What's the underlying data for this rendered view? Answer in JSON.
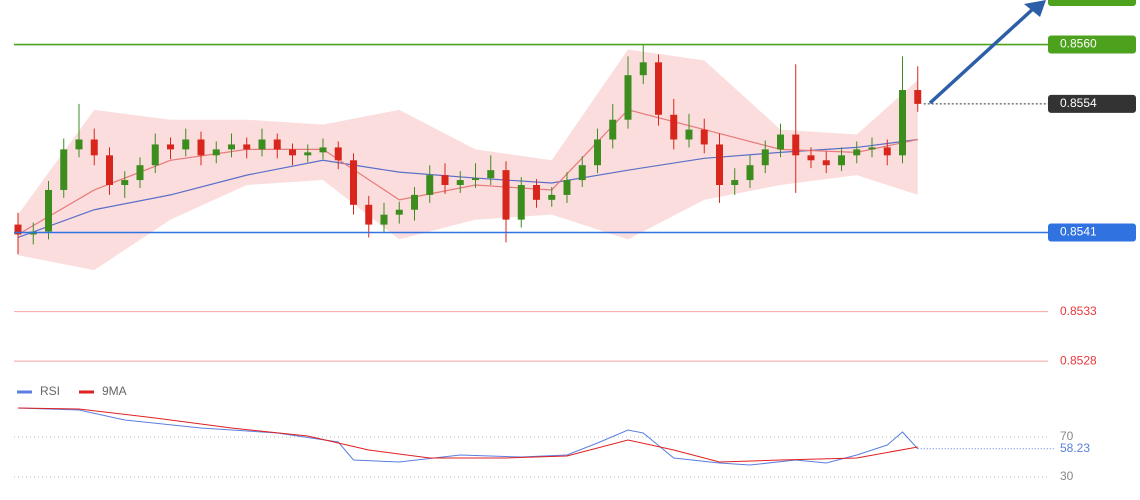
{
  "chart_data": {
    "type": "candlestick",
    "ylim": [
      0.8527,
      0.85645
    ],
    "up_color": "#3c8c1e",
    "down_color": "#d9261c",
    "candles": {
      "open": [
        0.85418,
        0.85408,
        0.85411,
        0.85453,
        0.85494,
        0.85504,
        0.85488,
        0.85458,
        0.85463,
        0.85478,
        0.85499,
        0.85494,
        0.85504,
        0.85488,
        0.85494,
        0.85499,
        0.85494,
        0.85504,
        0.85494,
        0.85488,
        0.85491,
        0.85496,
        0.85483,
        0.85438,
        0.85418,
        0.85428,
        0.85433,
        0.85448,
        0.85468,
        0.85458,
        0.85463,
        0.85465,
        0.85473,
        0.85423,
        0.85458,
        0.85443,
        0.85448,
        0.85463,
        0.85478,
        0.85504,
        0.85524,
        0.85569,
        0.85582,
        0.85529,
        0.85504,
        0.85514,
        0.85499,
        0.85458,
        0.85463,
        0.85478,
        0.85494,
        0.85509,
        0.85488,
        0.85483,
        0.85478,
        0.85488,
        0.85494,
        0.85496,
        0.85488,
        0.85554
      ],
      "high": [
        0.8543,
        0.8542,
        0.85462,
        0.85505,
        0.8554,
        0.85515,
        0.85496,
        0.85472,
        0.85486,
        0.8551,
        0.85506,
        0.85515,
        0.85512,
        0.85502,
        0.8551,
        0.85506,
        0.85515,
        0.8551,
        0.855,
        0.85499,
        0.85505,
        0.85502,
        0.8549,
        0.85447,
        0.8544,
        0.85441,
        0.85456,
        0.85478,
        0.8548,
        0.85472,
        0.8548,
        0.85488,
        0.85482,
        0.85466,
        0.85464,
        0.85456,
        0.85471,
        0.85487,
        0.85515,
        0.8554,
        0.85588,
        0.856,
        0.8559,
        0.85545,
        0.8553,
        0.85525,
        0.8551,
        0.85475,
        0.85488,
        0.85503,
        0.8552,
        0.8558,
        0.85496,
        0.85492,
        0.85496,
        0.85502,
        0.85506,
        0.85504,
        0.85588,
        0.85578
      ],
      "low": [
        0.85388,
        0.85398,
        0.85403,
        0.85445,
        0.85486,
        0.85478,
        0.85448,
        0.85445,
        0.85455,
        0.8547,
        0.85484,
        0.85487,
        0.85478,
        0.8548,
        0.85486,
        0.85485,
        0.85487,
        0.85485,
        0.85478,
        0.85481,
        0.85484,
        0.85474,
        0.85428,
        0.85405,
        0.8541,
        0.85419,
        0.85422,
        0.8544,
        0.85449,
        0.8545,
        0.85455,
        0.85458,
        0.854,
        0.85415,
        0.85435,
        0.85436,
        0.8544,
        0.85456,
        0.8547,
        0.85495,
        0.85515,
        0.8556,
        0.85518,
        0.85494,
        0.85496,
        0.8549,
        0.8544,
        0.85448,
        0.85455,
        0.8547,
        0.85486,
        0.8545,
        0.85475,
        0.8547,
        0.85472,
        0.8548,
        0.85486,
        0.85478,
        0.8548,
        0.85532
      ],
      "close": [
        0.85408,
        0.85411,
        0.85453,
        0.85494,
        0.85504,
        0.85488,
        0.85458,
        0.85463,
        0.85478,
        0.85499,
        0.85494,
        0.85504,
        0.85488,
        0.85494,
        0.85499,
        0.85494,
        0.85504,
        0.85494,
        0.85488,
        0.85491,
        0.85496,
        0.85483,
        0.85438,
        0.85418,
        0.85428,
        0.85433,
        0.85448,
        0.85468,
        0.85458,
        0.85463,
        0.85465,
        0.85473,
        0.85423,
        0.85458,
        0.85443,
        0.85448,
        0.85463,
        0.85478,
        0.85504,
        0.85524,
        0.85569,
        0.85582,
        0.85529,
        0.85504,
        0.85514,
        0.85499,
        0.85458,
        0.85463,
        0.85478,
        0.85494,
        0.85509,
        0.85488,
        0.85483,
        0.85478,
        0.85488,
        0.85494,
        0.85496,
        0.85488,
        0.85554,
        0.8554
      ]
    },
    "overlays": {
      "x": [
        0,
        5,
        10,
        15,
        20,
        25,
        30,
        35,
        40,
        45,
        50,
        55,
        59
      ],
      "band": {
        "color": "#f7b3b3",
        "upper": [
          0.85428,
          0.85534,
          0.85524,
          0.85524,
          0.85519,
          0.85534,
          0.85494,
          0.85483,
          0.85595,
          0.85584,
          0.85514,
          0.85509,
          0.85564
        ],
        "lower": [
          0.85387,
          0.85372,
          0.85423,
          0.85458,
          0.85463,
          0.85403,
          0.85423,
          0.85428,
          0.85403,
          0.85443,
          0.85458,
          0.85468,
          0.85448
        ]
      },
      "ma_fast": {
        "color": "#e87a7a",
        "values": [
          0.85408,
          0.85453,
          0.85483,
          0.85494,
          0.85494,
          0.85443,
          0.85458,
          0.85453,
          0.85534,
          0.85514,
          0.85494,
          0.85491,
          0.85504
        ]
      },
      "ma_slow": {
        "color": "#5a6fc8",
        "values": [
          0.85405,
          0.85433,
          0.85448,
          0.85468,
          0.85483,
          0.85471,
          0.85465,
          0.8546,
          0.85473,
          0.85485,
          0.85491,
          0.85496,
          0.85504
        ]
      }
    },
    "levels": [
      {
        "value": 0.856,
        "label": "0.8560",
        "color": "#4ca21c",
        "line": "solid",
        "box": true
      },
      {
        "value": 0.8554,
        "label": "0.8554",
        "color": "#333333",
        "line": "dotted",
        "box": true
      },
      {
        "value": 0.8541,
        "label": "0.8541",
        "color": "#2f72e0",
        "line": "solid",
        "box": true
      },
      {
        "value": 0.8533,
        "label": "0.8533",
        "color": "#e8383a",
        "line": "solid",
        "box": false
      },
      {
        "value": 0.8528,
        "label": "0.8528",
        "color": "#e8383a",
        "line": "solid",
        "box": false
      }
    ],
    "rsi": {
      "type": "line",
      "ylim": [
        20,
        105
      ],
      "yticks": [
        30,
        70
      ],
      "series": [
        {
          "name": "RSI",
          "color": "#5b7fe0",
          "x": [
            0,
            4,
            7,
            12,
            17,
            21,
            22,
            25,
            29,
            33,
            36,
            38,
            40,
            41,
            43,
            46,
            48,
            51,
            53,
            55,
            57,
            58,
            59
          ],
          "values": [
            99,
            97,
            87,
            79,
            74,
            65,
            47,
            45,
            52,
            50,
            52,
            64,
            77,
            74,
            49,
            44,
            42,
            47,
            44,
            52,
            62,
            75,
            58.23
          ]
        },
        {
          "name": "9MA",
          "color": "#e02020",
          "x": [
            0,
            4,
            9,
            14,
            19,
            23,
            27,
            32,
            36,
            40,
            43,
            46,
            50,
            55,
            59
          ],
          "values": [
            99,
            98,
            89,
            79,
            71,
            57,
            49,
            49,
            51,
            67,
            57,
            45,
            47,
            49,
            60
          ]
        }
      ]
    }
  }
}
